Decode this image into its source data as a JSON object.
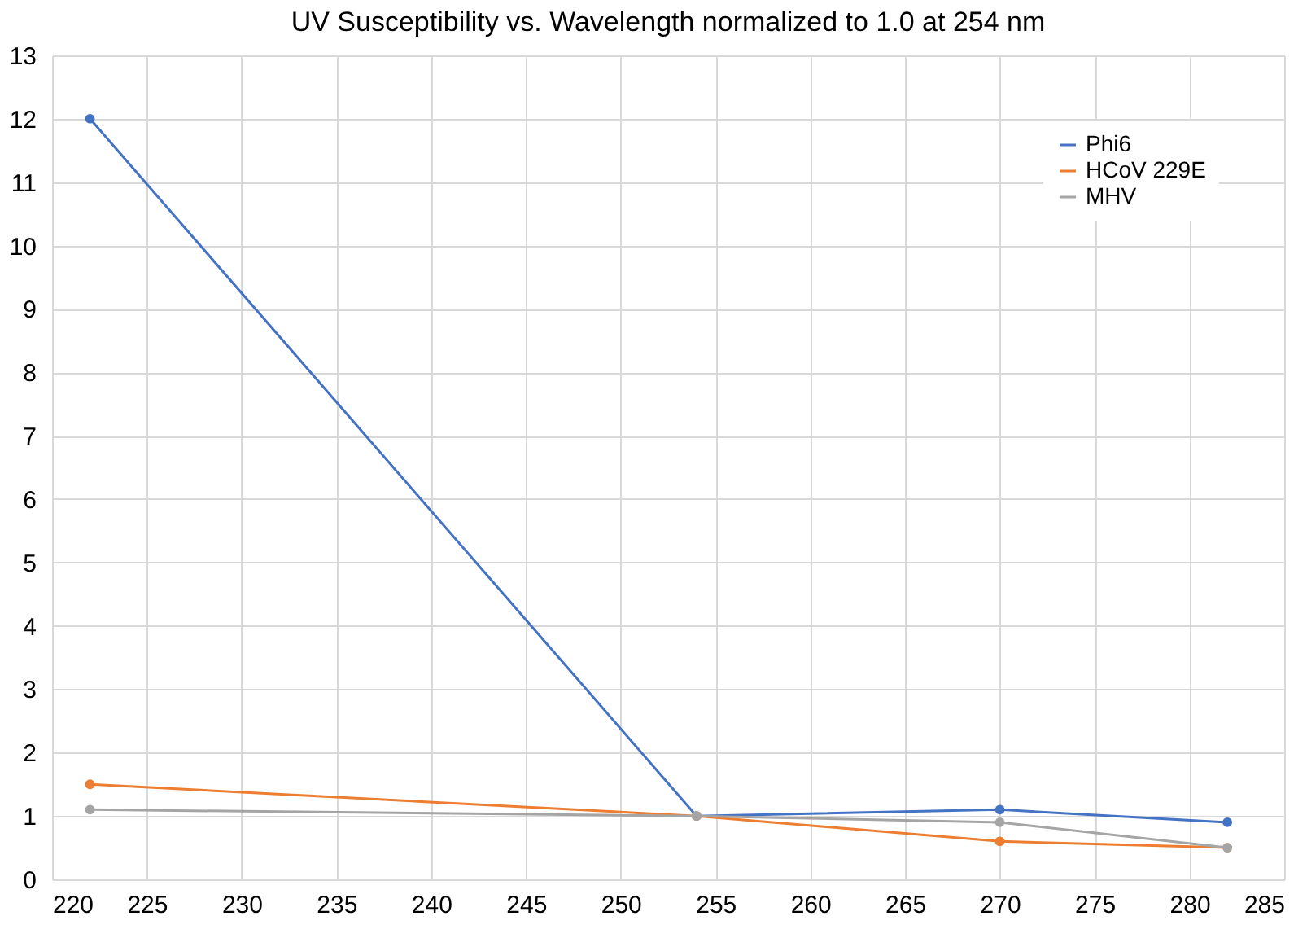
{
  "chart_data": {
    "type": "line",
    "title": "UV Susceptibility vs. Wavelength normalized to 1.0 at 254 nm",
    "x": [
      222,
      254,
      270,
      282
    ],
    "series": [
      {
        "name": "Phi6",
        "color": "#4472c4",
        "values": [
          12,
          1,
          1.1,
          0.9
        ]
      },
      {
        "name": "HCoV 229E",
        "color": "#ed7d31",
        "values": [
          1.5,
          1,
          0.6,
          0.5
        ]
      },
      {
        "name": "MHV",
        "color": "#a5a5a5",
        "values": [
          1.1,
          1,
          0.9,
          0.5
        ]
      }
    ],
    "xlim": [
      220,
      285
    ],
    "xticks": [
      220,
      225,
      230,
      235,
      240,
      245,
      250,
      255,
      260,
      265,
      270,
      275,
      280,
      285
    ],
    "ylim": [
      0,
      13
    ],
    "yticks": [
      0,
      1,
      2,
      3,
      4,
      5,
      6,
      7,
      8,
      9,
      10,
      11,
      12,
      13
    ],
    "grid": true,
    "legend": "top right",
    "marker": "circle",
    "line_style": "solid"
  }
}
